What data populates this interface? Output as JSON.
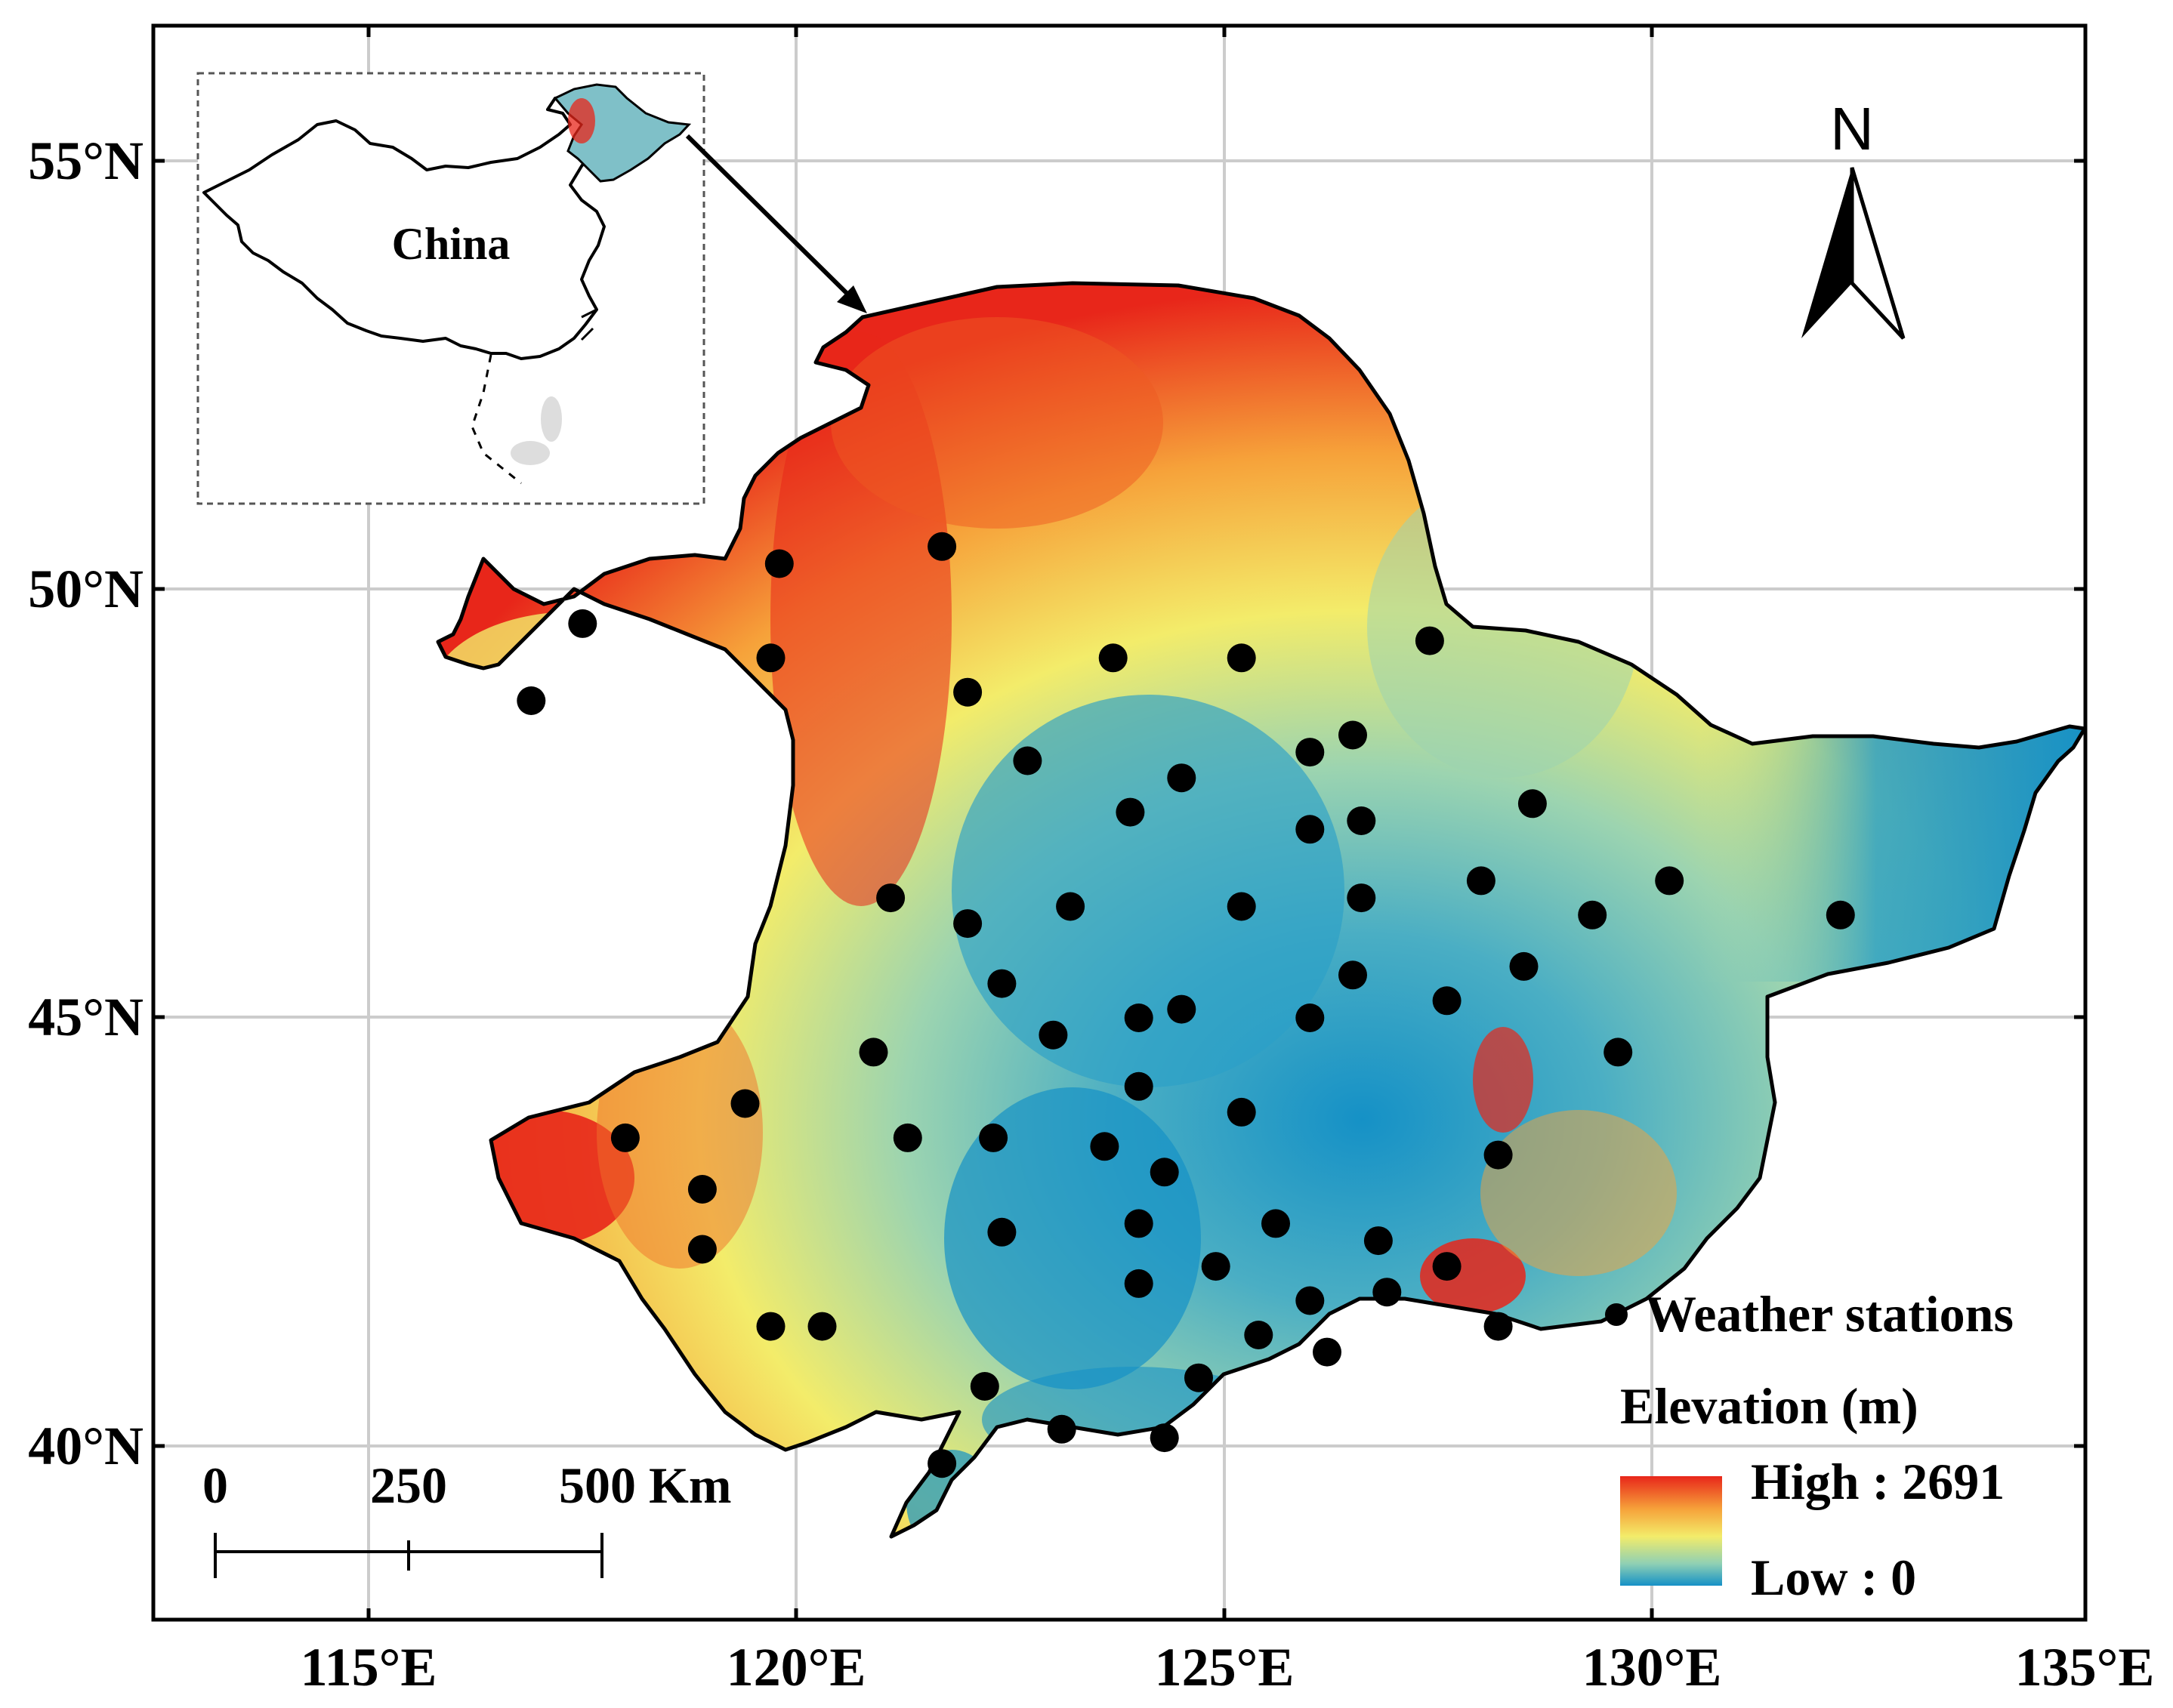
{
  "map": {
    "x_ticks": [
      "115°E",
      "120°E",
      "125°E",
      "130°E",
      "135°E"
    ],
    "y_ticks": [
      "55°N",
      "50°N",
      "45°N",
      "40°N"
    ],
    "inset_label": "China",
    "north_label": "N",
    "scale_bar": {
      "labels": [
        "0",
        "250",
        "500 Km"
      ]
    },
    "legend": {
      "stations_label": "Weather stations",
      "elevation_title": "Elevation (m)",
      "high_label": "High : 2691",
      "low_label": "Low : 0"
    },
    "colors": {
      "high": "#e8261a",
      "mid_high": "#f6a23a",
      "mid": "#f3ec6a",
      "mid_low": "#8fd0b4",
      "low": "#1591c6",
      "station": "#000000",
      "grid": "#cccccc"
    },
    "stations": [
      [
        119.8,
        50.3
      ],
      [
        121.7,
        50.5
      ],
      [
        117.5,
        49.6
      ],
      [
        116.9,
        48.7
      ],
      [
        119.7,
        49.2
      ],
      [
        122.0,
        48.8
      ],
      [
        123.7,
        49.2
      ],
      [
        125.2,
        49.2
      ],
      [
        127.4,
        49.4
      ],
      [
        122.7,
        48.0
      ],
      [
        124.5,
        47.8
      ],
      [
        126.0,
        48.1
      ],
      [
        126.5,
        48.3
      ],
      [
        123.9,
        47.4
      ],
      [
        126.0,
        47.2
      ],
      [
        126.6,
        47.3
      ],
      [
        128.6,
        47.5
      ],
      [
        121.1,
        46.4
      ],
      [
        122.0,
        46.1
      ],
      [
        123.2,
        46.3
      ],
      [
        125.2,
        46.3
      ],
      [
        126.6,
        46.4
      ],
      [
        128.0,
        46.6
      ],
      [
        129.3,
        46.2
      ],
      [
        130.2,
        46.6
      ],
      [
        132.2,
        46.2
      ],
      [
        122.4,
        45.4
      ],
      [
        123.0,
        44.8
      ],
      [
        124.0,
        45.0
      ],
      [
        124.5,
        45.1
      ],
      [
        126.0,
        45.0
      ],
      [
        126.5,
        45.5
      ],
      [
        127.6,
        45.2
      ],
      [
        128.5,
        45.6
      ],
      [
        120.9,
        44.6
      ],
      [
        129.6,
        44.6
      ],
      [
        124.0,
        44.2
      ],
      [
        125.2,
        43.9
      ],
      [
        119.4,
        44.0
      ],
      [
        118.0,
        43.6
      ],
      [
        121.3,
        43.6
      ],
      [
        122.3,
        43.6
      ],
      [
        123.6,
        43.5
      ],
      [
        124.3,
        43.2
      ],
      [
        128.2,
        43.4
      ],
      [
        118.9,
        43.0
      ],
      [
        118.9,
        42.3
      ],
      [
        122.4,
        42.5
      ],
      [
        124.0,
        42.6
      ],
      [
        125.6,
        42.6
      ],
      [
        126.8,
        42.4
      ],
      [
        124.9,
        42.1
      ],
      [
        127.6,
        42.1
      ],
      [
        124.0,
        41.9
      ],
      [
        126.0,
        41.7
      ],
      [
        126.9,
        41.8
      ],
      [
        119.7,
        41.4
      ],
      [
        120.3,
        41.4
      ],
      [
        125.4,
        41.3
      ],
      [
        126.2,
        41.1
      ],
      [
        128.2,
        41.4
      ],
      [
        122.2,
        40.7
      ],
      [
        124.7,
        40.8
      ],
      [
        123.1,
        40.2
      ],
      [
        124.3,
        40.1
      ],
      [
        121.7,
        39.8
      ]
    ]
  }
}
